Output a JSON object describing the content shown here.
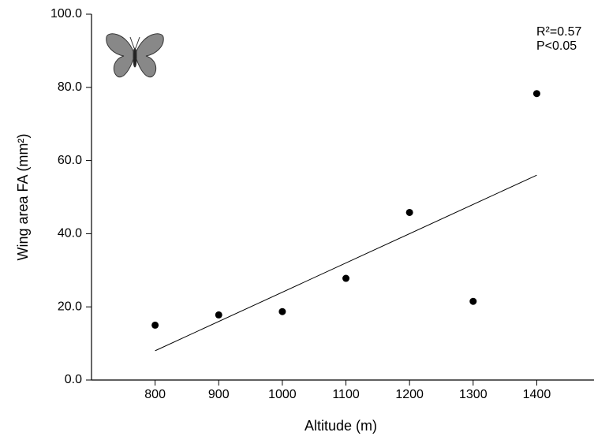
{
  "chart_data": {
    "type": "scatter",
    "x_label": "Altitude (m)",
    "y_label": "Wing area FA (mm²)",
    "annotations": [
      "R²=0.57",
      "P<0.05"
    ],
    "x": [
      800,
      900,
      1000,
      1100,
      1200,
      1300,
      1400
    ],
    "values": [
      15.0,
      17.8,
      18.7,
      27.8,
      45.8,
      21.5,
      78.3
    ],
    "color": "#000000",
    "fit": {
      "x": [
        800,
        1400
      ],
      "values": [
        8.0,
        56.0
      ]
    },
    "xlim": [
      700,
      1490
    ],
    "xticks": [
      800,
      900,
      1000,
      1100,
      1200,
      1300,
      1400
    ],
    "ylim": [
      0,
      100
    ],
    "yticks": [
      {
        "value": 0,
        "label": "0.0"
      },
      {
        "value": 20,
        "label": "20.0"
      },
      {
        "value": 40,
        "label": "40.0"
      },
      {
        "value": 60,
        "label": "60.0"
      },
      {
        "value": 80,
        "label": "80.0"
      },
      {
        "value": 100,
        "label": "100.0"
      }
    ]
  }
}
